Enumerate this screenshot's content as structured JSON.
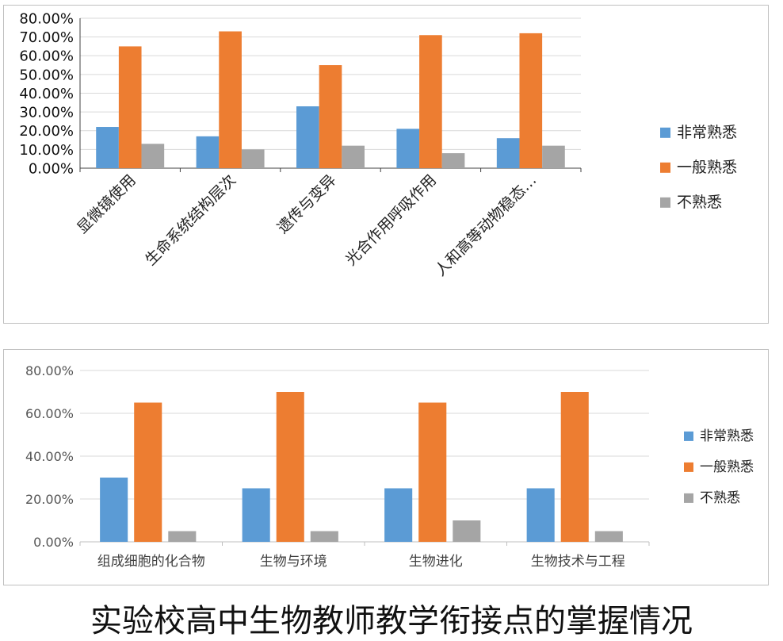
{
  "caption": "实验校高中生物教师教学衔接点的掌握情况",
  "chart_data": [
    {
      "type": "bar",
      "categories": [
        "显微镜使用",
        "生命系统结构层次",
        "遗传与变异",
        "光合作用呼吸作用",
        "人和高等动物稳态…"
      ],
      "series": [
        {
          "name": "非常熟悉",
          "color": "#5b9bd5",
          "values": [
            22,
            17,
            33,
            21,
            16
          ]
        },
        {
          "name": "一般熟悉",
          "color": "#ed7d31",
          "values": [
            65,
            73,
            55,
            71,
            72
          ]
        },
        {
          "name": "不熟悉",
          "color": "#a5a5a5",
          "values": [
            13,
            10,
            12,
            8,
            12
          ]
        }
      ],
      "yticks": [
        "0.00%",
        "10.00%",
        "20.00%",
        "30.00%",
        "40.00%",
        "50.00%",
        "60.00%",
        "70.00%",
        "80.00%"
      ],
      "ylim": [
        0,
        80
      ],
      "legend": "right",
      "grid": true
    },
    {
      "type": "bar",
      "categories": [
        "组成细胞的化合物",
        "生物与环境",
        "生物进化",
        "生物技术与工程"
      ],
      "series": [
        {
          "name": "非常熟悉",
          "color": "#5b9bd5",
          "values": [
            30,
            25,
            25,
            25
          ]
        },
        {
          "name": "一般熟悉",
          "color": "#ed7d31",
          "values": [
            65,
            70,
            65,
            70
          ]
        },
        {
          "name": "不熟悉",
          "color": "#a5a5a5",
          "values": [
            5,
            5,
            10,
            5
          ]
        }
      ],
      "yticks": [
        "0.00%",
        "20.00%",
        "40.00%",
        "60.00%",
        "80.00%"
      ],
      "ylim": [
        0,
        80
      ],
      "legend": "right",
      "grid": true
    }
  ]
}
